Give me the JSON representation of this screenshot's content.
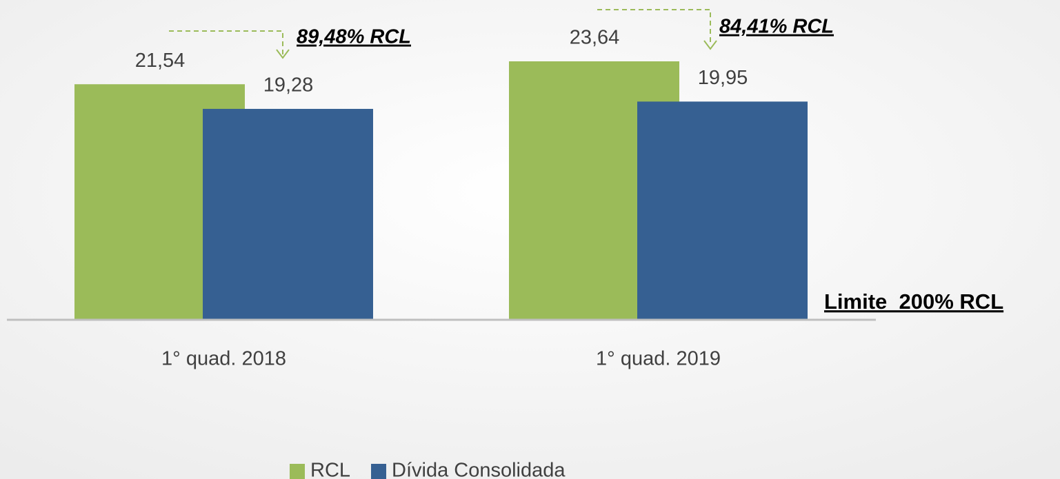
{
  "chart_data": {
    "type": "bar",
    "categories": [
      "1° quad. 2018",
      "1° quad. 2019"
    ],
    "series": [
      {
        "name": "RCL",
        "color": "#9bbb59",
        "values": [
          21.54,
          23.64
        ],
        "value_labels": [
          "21,54",
          "23,64"
        ]
      },
      {
        "name": "Dívida Consolidada",
        "color": "#366092",
        "values": [
          19.28,
          19.95
        ],
        "value_labels": [
          "19,28",
          "19,95"
        ]
      }
    ],
    "annotations": [
      "89,48% RCL",
      "84,41% RCL",
      "Limite  200% RCL"
    ]
  }
}
